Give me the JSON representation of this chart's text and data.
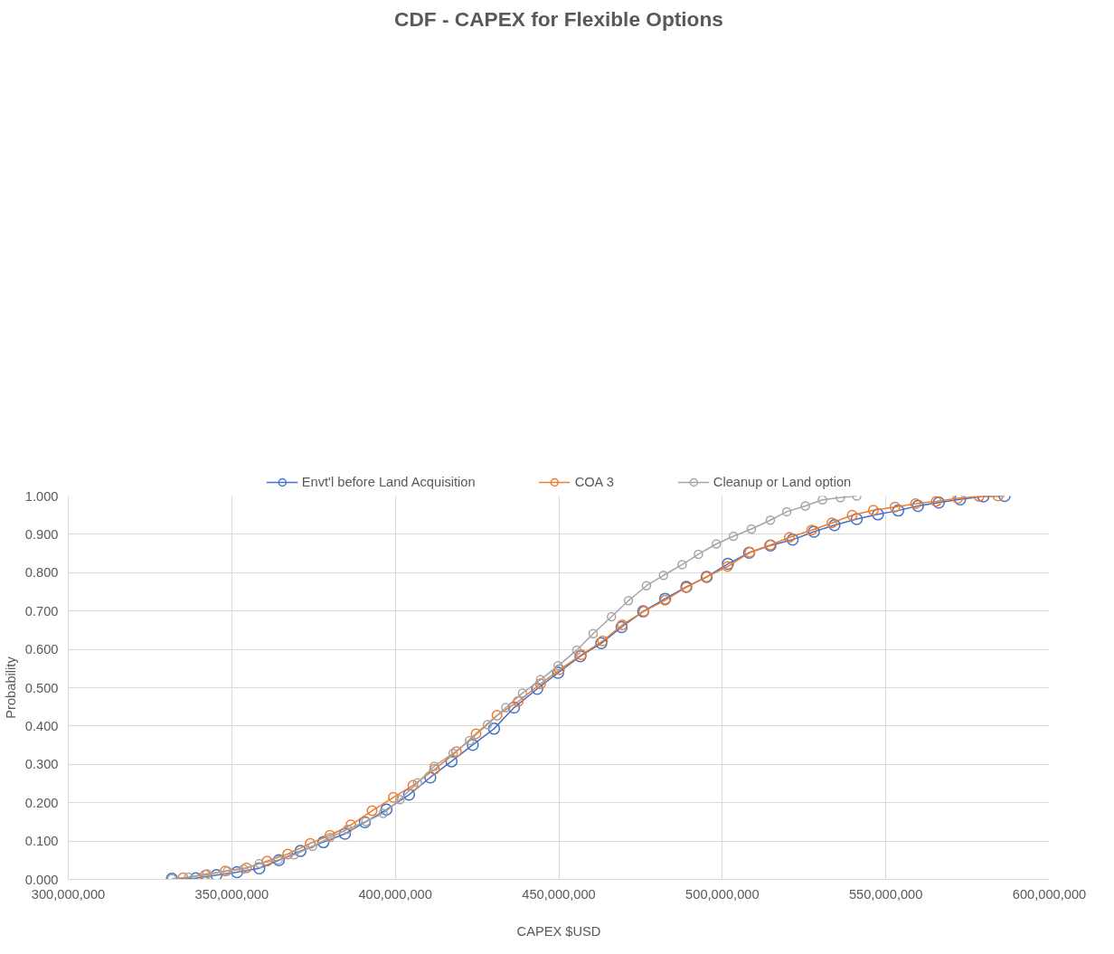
{
  "chart_data": {
    "type": "line",
    "title": "CDF - CAPEX for Flexible Options",
    "xlabel": "CAPEX $USD",
    "ylabel": "Probability",
    "xlim": [
      300000000,
      600000000
    ],
    "xticks": [
      {
        "value": 300000000,
        "label": "300,000,000"
      },
      {
        "value": 350000000,
        "label": "350,000,000"
      },
      {
        "value": 400000000,
        "label": "400,000,000"
      },
      {
        "value": 450000000,
        "label": "450,000,000"
      },
      {
        "value": 500000000,
        "label": "500,000,000"
      },
      {
        "value": 550000000,
        "label": "550,000,000"
      },
      {
        "value": 600000000,
        "label": "600,000,000"
      }
    ],
    "ylim": [
      0,
      1
    ],
    "yticks": [
      {
        "value": 0,
        "label": "0.000"
      },
      {
        "value": 0.1,
        "label": "0.100"
      },
      {
        "value": 0.2,
        "label": "0.200"
      },
      {
        "value": 0.3,
        "label": "0.300"
      },
      {
        "value": 0.4,
        "label": "0.400"
      },
      {
        "value": 0.5,
        "label": "0.500"
      },
      {
        "value": 0.6,
        "label": "0.600"
      },
      {
        "value": 0.7,
        "label": "0.700"
      },
      {
        "value": 0.8,
        "label": "0.800"
      },
      {
        "value": 0.9,
        "label": "0.900"
      },
      {
        "value": 1,
        "label": "1.000"
      }
    ],
    "grid": true,
    "legend": "top",
    "marker": "circle",
    "line_style": "solid",
    "series": [
      {
        "name": "Envt'l before Land Acquisition",
        "color": "#4472c4",
        "x": [
          331700000,
          339000000,
          345300000,
          351600000,
          358400000,
          364400000,
          371000000,
          378000000,
          384600000,
          390700000,
          397300000,
          404200000,
          410700000,
          417200000,
          423700000,
          430200000,
          436300000,
          443400000,
          449800000,
          456600000,
          463000000,
          469200000,
          475800000,
          482500000,
          489000000,
          495200000,
          501700000,
          508200000,
          514700000,
          521500000,
          528000000,
          534300000,
          541100000,
          547600000,
          553800000,
          559800000,
          566200000,
          572700000,
          579800000,
          586300000
        ],
        "values": [
          0.002,
          0.003,
          0.011,
          0.019,
          0.029,
          0.05,
          0.074,
          0.097,
          0.119,
          0.149,
          0.182,
          0.221,
          0.266,
          0.308,
          0.351,
          0.393,
          0.448,
          0.497,
          0.539,
          0.582,
          0.616,
          0.658,
          0.699,
          0.732,
          0.763,
          0.789,
          0.823,
          0.852,
          0.871,
          0.886,
          0.907,
          0.924,
          0.94,
          0.952,
          0.962,
          0.974,
          0.983,
          0.991,
          0.999,
          1.0
        ]
      },
      {
        "name": "COA 3",
        "color": "#ed7d31",
        "x": [
          335100000,
          341900000,
          348000000,
          354500000,
          360800000,
          367100000,
          374000000,
          380000000,
          386400000,
          392900000,
          399400000,
          405400000,
          412000000,
          418700000,
          424700000,
          431100000,
          437600000,
          444400000,
          450200000,
          456900000,
          463400000,
          469400000,
          476000000,
          482500000,
          489000000,
          495200000,
          501600000,
          508400000,
          514700000,
          520500000,
          527300000,
          533500000,
          539700000,
          546200000,
          552800000,
          559100000,
          565400000,
          572000000,
          578500000,
          584300000
        ],
        "values": [
          0.004,
          0.011,
          0.022,
          0.03,
          0.048,
          0.066,
          0.094,
          0.115,
          0.142,
          0.179,
          0.214,
          0.245,
          0.287,
          0.333,
          0.38,
          0.428,
          0.464,
          0.51,
          0.547,
          0.586,
          0.622,
          0.664,
          0.699,
          0.728,
          0.762,
          0.789,
          0.816,
          0.853,
          0.872,
          0.892,
          0.911,
          0.93,
          0.95,
          0.963,
          0.971,
          0.98,
          0.986,
          0.994,
          0.999,
          1.0
        ]
      },
      {
        "name": "Cleanup or Land option",
        "color": "#a5a5a5",
        "x": [
          331700000,
          336800000,
          342400000,
          348700000,
          353600000,
          358400000,
          364200000,
          369100000,
          374700000,
          380000000,
          385400000,
          391000000,
          396300000,
          401400000,
          406800000,
          411900000,
          417700000,
          422700000,
          428200000,
          433800000,
          438900000,
          444400000,
          449800000,
          455500000,
          460500000,
          466100000,
          471300000,
          476800000,
          482000000,
          487700000,
          492700000,
          498200000,
          503400000,
          508900000,
          514700000,
          519700000,
          525400000,
          530600000,
          536100000,
          541100000
        ],
        "values": [
          0.002,
          0.006,
          0.015,
          0.022,
          0.027,
          0.041,
          0.051,
          0.064,
          0.086,
          0.109,
          0.131,
          0.151,
          0.172,
          0.208,
          0.252,
          0.295,
          0.329,
          0.362,
          0.404,
          0.448,
          0.486,
          0.521,
          0.557,
          0.598,
          0.641,
          0.685,
          0.727,
          0.766,
          0.793,
          0.821,
          0.848,
          0.875,
          0.895,
          0.914,
          0.937,
          0.959,
          0.974,
          0.99,
          0.996,
          1.0
        ]
      }
    ]
  }
}
